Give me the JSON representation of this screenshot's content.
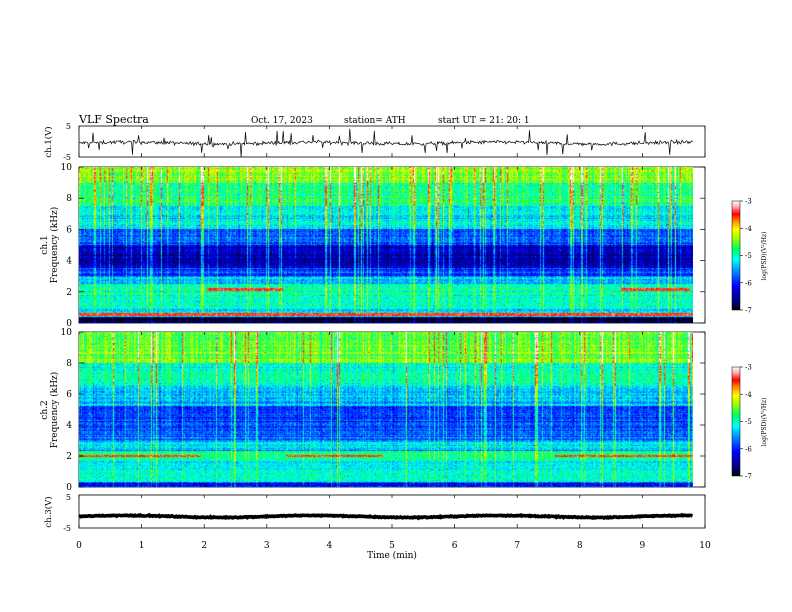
{
  "header": {
    "title": "VLF  Spectra",
    "date": "Oct. 17, 2023",
    "station": "station= ATH",
    "start": "start  UT  =    21: 20: 1"
  },
  "colors": {
    "spectrum": [
      "#00002a",
      "#000080",
      "#0000ff",
      "#0080ff",
      "#00ffff",
      "#00ff80",
      "#60ff00",
      "#ffff00",
      "#ff8000",
      "#ff0000",
      "#ffb0b0",
      "#ffffff"
    ],
    "trace": "#000000"
  },
  "chart_data": [
    {
      "type": "line",
      "name": "ch1-waveform",
      "ylabel": "ch.1(V)",
      "ylim": [
        -5,
        5
      ],
      "yticks": [
        "5",
        "-5"
      ],
      "x_range": [
        0,
        10
      ],
      "mean_level": -0.5,
      "noise_amplitude": 0.6,
      "data_extent_min": 9.8
    },
    {
      "type": "heatmap",
      "name": "ch1-spectrogram",
      "ylabel_top": "ch.1",
      "ylabel": "Frequency  (kHz)",
      "ylim": [
        0,
        10
      ],
      "yticks": [
        "0",
        "2",
        "4",
        "6",
        "8",
        "10"
      ],
      "colorbar": {
        "label": "log(PSD)(V²/Hz)",
        "range": [
          -7,
          -3
        ],
        "ticks": [
          "-3",
          "-4",
          "-5",
          "-6",
          "-7"
        ]
      },
      "bands_khz": [
        {
          "low": 0.0,
          "high": 0.4,
          "level": -6.8
        },
        {
          "low": 0.4,
          "high": 0.9,
          "level": -5.3
        },
        {
          "low": 0.9,
          "high": 1.8,
          "level": -5.0
        },
        {
          "low": 1.8,
          "high": 2.5,
          "level": -4.9
        },
        {
          "low": 2.5,
          "high": 3.0,
          "level": -5.4
        },
        {
          "low": 3.0,
          "high": 3.5,
          "level": -5.9
        },
        {
          "low": 3.5,
          "high": 5.0,
          "level": -6.4
        },
        {
          "low": 5.0,
          "high": 6.0,
          "level": -5.8
        },
        {
          "low": 6.0,
          "high": 7.5,
          "level": -5.2
        },
        {
          "low": 7.5,
          "high": 9.0,
          "level": -4.8
        },
        {
          "low": 9.0,
          "high": 10.0,
          "level": -4.4
        }
      ],
      "transmitter_lines": [
        {
          "freq": 2.15,
          "start_min": 2.05,
          "end_min": 3.25
        },
        {
          "freq": 2.15,
          "start_min": 8.65,
          "end_min": 9.75
        },
        {
          "freq": 0.55,
          "start_min": 0.0,
          "end_min": 9.8
        }
      ],
      "data_extent_min": 9.8
    },
    {
      "type": "heatmap",
      "name": "ch2-spectrogram",
      "ylabel_top": "ch.2",
      "ylabel": "Frequency  (kHz)",
      "ylim": [
        0,
        10
      ],
      "yticks": [
        "0",
        "2",
        "4",
        "6",
        "8",
        "10"
      ],
      "colorbar": {
        "label": "log(PSD)(V²/Hz)",
        "range": [
          -7,
          -3
        ],
        "ticks": [
          "-3",
          "-4",
          "-5",
          "-6",
          "-7"
        ]
      },
      "bands_khz": [
        {
          "low": 0.0,
          "high": 0.3,
          "level": -6.0
        },
        {
          "low": 0.3,
          "high": 1.0,
          "level": -5.0
        },
        {
          "low": 1.0,
          "high": 1.7,
          "level": -5.2
        },
        {
          "low": 1.7,
          "high": 2.3,
          "level": -4.8
        },
        {
          "low": 2.3,
          "high": 3.0,
          "level": -5.3
        },
        {
          "low": 3.0,
          "high": 4.2,
          "level": -5.8
        },
        {
          "low": 4.2,
          "high": 5.2,
          "level": -5.9
        },
        {
          "low": 5.2,
          "high": 6.5,
          "level": -5.4
        },
        {
          "low": 6.5,
          "high": 8.0,
          "level": -5.0
        },
        {
          "low": 8.0,
          "high": 10.0,
          "level": -4.5
        }
      ],
      "transmitter_lines": [
        {
          "freq": 2.0,
          "start_min": 0.0,
          "end_min": 1.95
        },
        {
          "freq": 2.0,
          "start_min": 3.3,
          "end_min": 4.85
        },
        {
          "freq": 2.0,
          "start_min": 7.6,
          "end_min": 9.8
        }
      ],
      "data_extent_min": 9.8
    },
    {
      "type": "line",
      "name": "ch3-waveform",
      "ylabel": "ch.3(V)",
      "ylim": [
        -5,
        5
      ],
      "yticks": [
        "5",
        "-5"
      ],
      "x_range": [
        0,
        10
      ],
      "mean_level": -1.5,
      "noise_amplitude": 0.15,
      "data_extent_min": 9.8
    }
  ],
  "xaxis": {
    "label": "Time  (min)",
    "range": [
      0,
      10
    ],
    "ticks": [
      "0",
      "1",
      "2",
      "3",
      "4",
      "5",
      "6",
      "7",
      "8",
      "9",
      "10"
    ]
  }
}
